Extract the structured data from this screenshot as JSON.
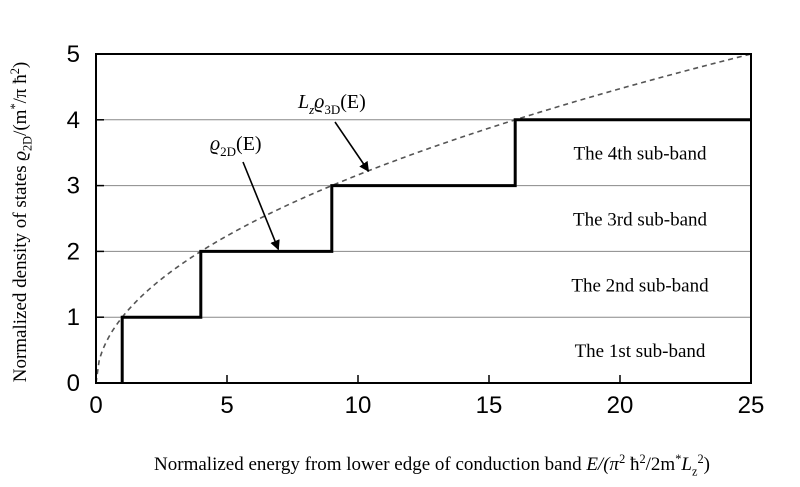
{
  "chart_data": {
    "type": "line",
    "xlabel_text": "Normalized energy from lower edge of conduction band",
    "xlabel_formula": [
      "E/(π",
      "2",
      " ħ",
      "2",
      "/2m",
      "*",
      "L",
      "z",
      "2",
      ")"
    ],
    "ylabel_text": "Normalized density of states",
    "ylabel_formula": [
      "ϱ",
      "2D",
      "/(m",
      "*",
      "/π ħ",
      "2",
      ")"
    ],
    "xlim": [
      0,
      25
    ],
    "ylim": [
      0,
      5
    ],
    "x_ticks": [
      0,
      5,
      10,
      15,
      20,
      25
    ],
    "y_ticks": [
      0,
      1,
      2,
      3,
      4,
      5
    ],
    "grid_y_lines": [
      1,
      2,
      3,
      4
    ],
    "series": [
      {
        "style": "solid-step",
        "color": "#000000",
        "points": [
          [
            1,
            0
          ],
          [
            1,
            1
          ],
          [
            4,
            1
          ],
          [
            4,
            2
          ],
          [
            9,
            2
          ],
          [
            9,
            3
          ],
          [
            16,
            3
          ],
          [
            16,
            4
          ],
          [
            25,
            4
          ]
        ]
      },
      {
        "style": "dashed",
        "color": "#555555",
        "function": "sqrt",
        "x_range": [
          0,
          25
        ]
      }
    ],
    "annotations": [
      {
        "parts": [
          "ϱ",
          "2D",
          "(E)"
        ],
        "arrow_to": [
          7,
          2
        ]
      },
      {
        "parts": [
          "L",
          "z",
          "ϱ",
          "3D",
          "(E)"
        ],
        "arrow_to": [
          10.4,
          3.22
        ]
      }
    ],
    "band_labels": [
      {
        "text": "The 1st sub-band",
        "y": 0.5
      },
      {
        "text": "The 2nd sub-band",
        "y": 1.5
      },
      {
        "text": "The 3rd sub-band",
        "y": 2.5
      },
      {
        "text": "The 4th sub-band",
        "y": 3.5
      }
    ]
  }
}
